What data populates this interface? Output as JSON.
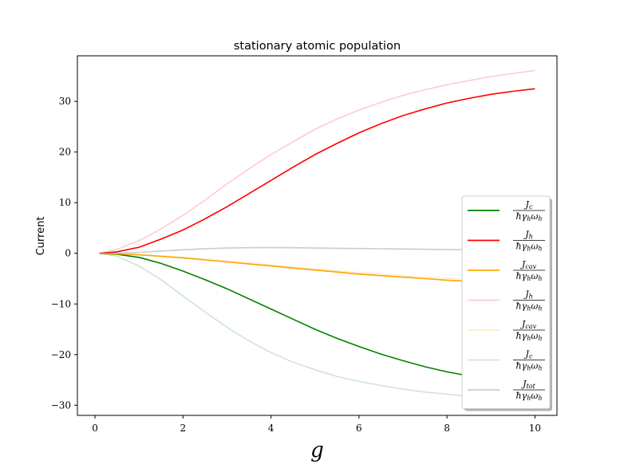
{
  "chart_data": {
    "type": "line",
    "title": "stationary atomic population",
    "xlabel": "g",
    "ylabel": "Current",
    "xlim": [
      -0.4,
      10.5
    ],
    "ylim": [
      -32,
      39
    ],
    "xticks": [
      0,
      2,
      4,
      6,
      8,
      10
    ],
    "yticks": [
      -30,
      -20,
      -10,
      0,
      10,
      20,
      30
    ],
    "legend_position": "center-right",
    "grid": false,
    "x": [
      0.1,
      0.5,
      1,
      1.5,
      2,
      2.5,
      3,
      3.5,
      4,
      4.5,
      5,
      5.5,
      6,
      6.5,
      7,
      7.5,
      8,
      8.5,
      9,
      9.5,
      10
    ],
    "series": [
      {
        "name": "J_c / ħγ_h ω_h",
        "num": "J",
        "num_sub": "c",
        "color": "#008000",
        "opacity": 1,
        "values": [
          0,
          -0.2,
          -0.8,
          -2.0,
          -3.5,
          -5.2,
          -7.0,
          -9.0,
          -11.0,
          -13.0,
          -15.0,
          -16.8,
          -18.4,
          -19.9,
          -21.2,
          -22.4,
          -23.4,
          -24.2,
          -24.9,
          -25.5,
          -26.0
        ]
      },
      {
        "name": "J_h / ħγ_h ω_h",
        "num": "J",
        "num_sub": "h",
        "color": "#ff0000",
        "opacity": 1,
        "values": [
          0,
          0.3,
          1.2,
          2.8,
          4.6,
          6.8,
          9.2,
          11.8,
          14.4,
          17.0,
          19.5,
          21.7,
          23.8,
          25.6,
          27.2,
          28.5,
          29.7,
          30.6,
          31.4,
          32.0,
          32.5
        ]
      },
      {
        "name": "J_cav / ħγ_h ω_h",
        "num": "J",
        "num_sub": "cav",
        "color": "#ffa500",
        "opacity": 1,
        "values": [
          0,
          -0.1,
          -0.3,
          -0.6,
          -0.9,
          -1.3,
          -1.7,
          -2.1,
          -2.5,
          -2.9,
          -3.3,
          -3.7,
          -4.1,
          -4.4,
          -4.7,
          -5.0,
          -5.3,
          -5.5,
          -5.7,
          -5.9,
          -6.0
        ]
      },
      {
        "name": "J_h / ħγ_h ω_h",
        "num": "J",
        "num_sub": "h",
        "color": "#ff0000",
        "opacity": 0.2,
        "values": [
          0,
          0.8,
          2.5,
          4.8,
          7.5,
          10.5,
          13.7,
          16.7,
          19.5,
          22.0,
          24.5,
          26.5,
          28.3,
          29.8,
          31.2,
          32.3,
          33.3,
          34.1,
          34.9,
          35.5,
          36.1
        ]
      },
      {
        "name": "J_cav / ħγ_h ω_h",
        "num": "J",
        "num_sub": "cav",
        "color": "#ffa500",
        "opacity": 0.2,
        "values": [
          0,
          -0.1,
          -0.3,
          -0.5,
          -0.8,
          -1.1,
          -1.5,
          -1.9,
          -2.3,
          -2.7,
          -3.1,
          -3.4,
          -3.8,
          -4.1,
          -4.4,
          -4.7,
          -4.9,
          -5.1,
          -5.3,
          -5.5,
          -5.6
        ]
      },
      {
        "name": "J_c / ħγ_h ω_h",
        "num": "J",
        "num_sub": "c",
        "color": "#008000",
        "opacity": 0.2,
        "values": [
          0,
          -0.6,
          -2.5,
          -5.2,
          -8.4,
          -11.6,
          -14.6,
          -17.3,
          -19.6,
          -21.5,
          -23.0,
          -24.3,
          -25.3,
          -26.1,
          -26.8,
          -27.4,
          -27.8,
          -28.2,
          -28.5,
          -28.7,
          -28.9
        ]
      },
      {
        "name": "J_tot / ħγ_h ω_h",
        "num": "J",
        "num_sub": "tot",
        "color": "#808080",
        "opacity": 0.4,
        "values": [
          0,
          0.05,
          0.2,
          0.45,
          0.7,
          0.9,
          1.05,
          1.1,
          1.12,
          1.1,
          1.05,
          1.0,
          0.95,
          0.9,
          0.85,
          0.8,
          0.75,
          0.7,
          0.65,
          0.6,
          0.55
        ]
      }
    ],
    "legend_denominator": {
      "hbar": "ħ",
      "gamma": "γ",
      "gamma_sub": "h",
      "omega": "ω",
      "omega_sub": "h"
    }
  }
}
